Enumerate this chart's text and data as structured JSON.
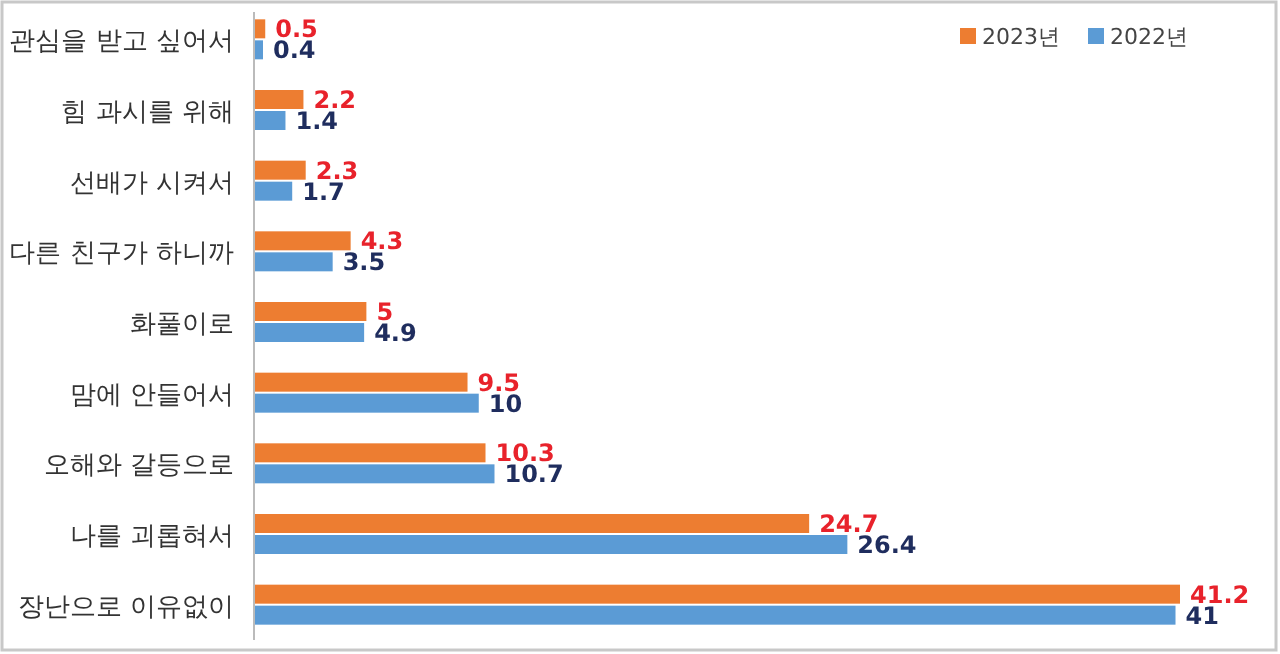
{
  "chart_data": {
    "type": "bar",
    "orientation": "horizontal",
    "data_labels": true,
    "legend": "top right",
    "categories": [
      "관심을 받고 싶어서",
      "힘 과시를 위해",
      "선배가 시켜서",
      "다른 친구가 하니까",
      "화풀이로",
      "맘에 안들어서",
      "오해와 갈등으로",
      "나를 괴롭혀서",
      "장난으로 이유없이"
    ],
    "series": [
      {
        "name": "2023년",
        "color": "#ed7d31",
        "values": [
          0.5,
          2.2,
          2.3,
          4.3,
          5,
          9.5,
          10.3,
          24.7,
          41.2
        ]
      },
      {
        "name": "2022년",
        "color": "#5b9bd5",
        "values": [
          0.4,
          1.4,
          1.7,
          3.5,
          4.9,
          10,
          10.7,
          26.4,
          41
        ]
      }
    ]
  }
}
